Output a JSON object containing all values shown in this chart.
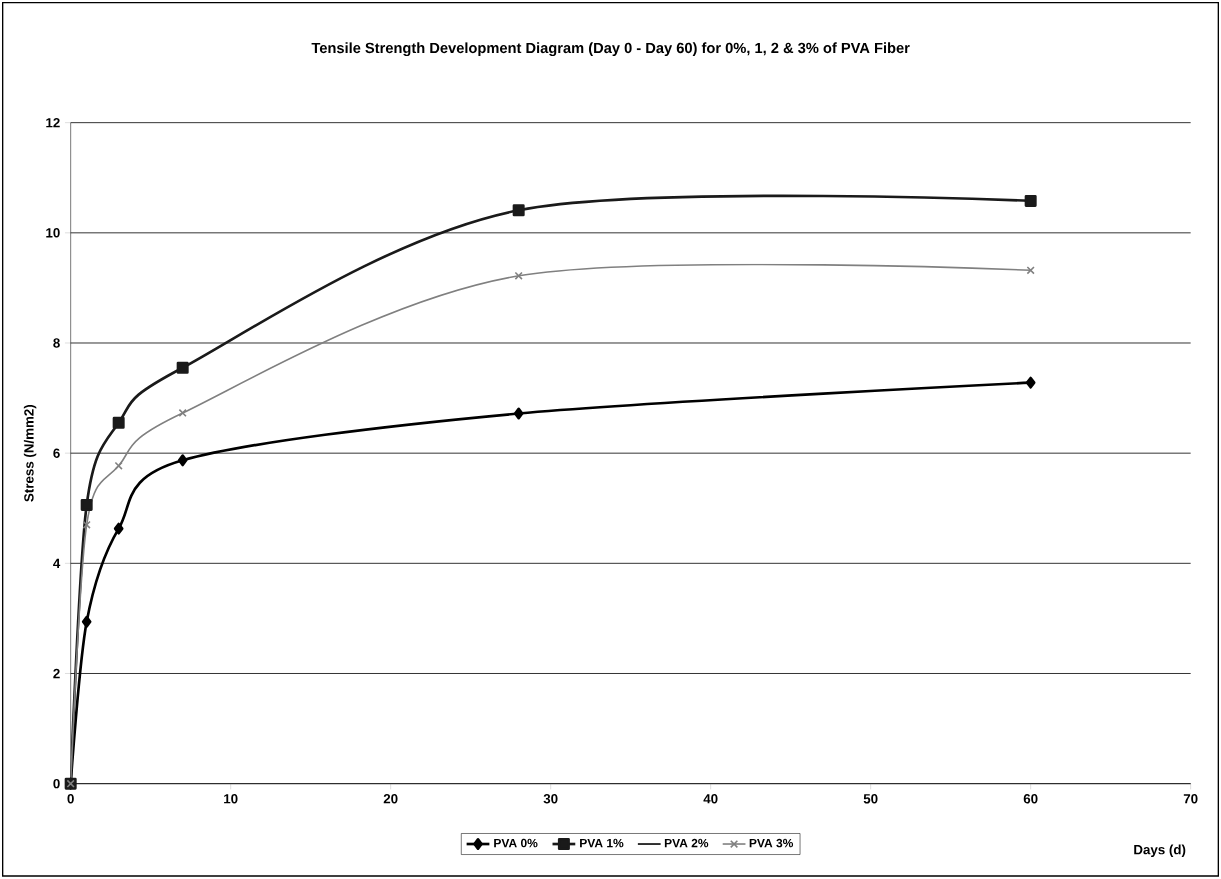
{
  "chart_data": {
    "type": "line",
    "title": "Tensile Strength Development Diagram (Day 0 - Day 60) for 0%, 1, 2 & 3% of PVA Fiber",
    "xlabel": "Days (d)",
    "ylabel": "Stress (N/mm2)",
    "x": [
      0,
      1,
      3,
      7,
      28,
      60
    ],
    "series": [
      {
        "name": "PVA 0%",
        "color": "#000000",
        "marker": "diamond",
        "values": [
          0,
          2.94,
          4.63,
          5.87,
          6.72,
          7.28
        ]
      },
      {
        "name": "PVA 1%",
        "color": "#1a1a1a",
        "marker": "square",
        "values": [
          0,
          5.06,
          6.55,
          7.55,
          10.41,
          10.58
        ]
      },
      {
        "name": "PVA 2%",
        "marker": "none",
        "values": [
          null,
          null,
          null,
          null,
          null,
          null
        ]
      },
      {
        "name": "PVA 3%",
        "color": "#808080",
        "marker": "cross",
        "values": [
          0,
          4.7,
          5.77,
          6.73,
          9.22,
          9.32
        ]
      }
    ],
    "xlim": [
      0,
      70
    ],
    "xticks": [
      0,
      10,
      20,
      30,
      40,
      50,
      60,
      70
    ],
    "ylim": [
      0,
      12
    ],
    "yticks": [
      0,
      2,
      4,
      6,
      8,
      10,
      12
    ],
    "grid": "y",
    "legend": "bottom",
    "line_style": "solid"
  }
}
